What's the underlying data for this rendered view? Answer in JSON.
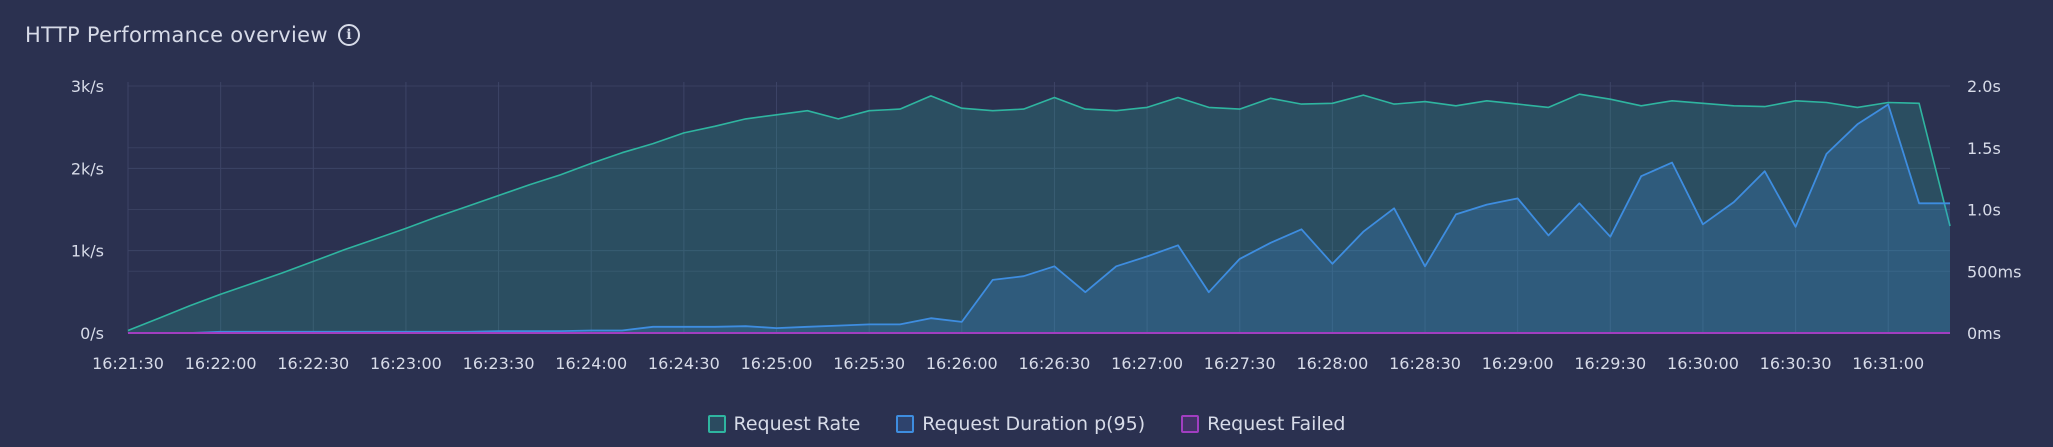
{
  "panel": {
    "title": "HTTP Performance overview",
    "info_icon": "info-icon"
  },
  "chart_data": {
    "type": "line",
    "x": [
      "16:21:30",
      "16:21:40",
      "16:21:50",
      "16:22:00",
      "16:22:10",
      "16:22:20",
      "16:22:30",
      "16:22:40",
      "16:22:50",
      "16:23:00",
      "16:23:10",
      "16:23:20",
      "16:23:30",
      "16:23:40",
      "16:23:50",
      "16:24:00",
      "16:24:10",
      "16:24:20",
      "16:24:30",
      "16:24:40",
      "16:24:50",
      "16:25:00",
      "16:25:10",
      "16:25:20",
      "16:25:30",
      "16:25:40",
      "16:25:50",
      "16:26:00",
      "16:26:10",
      "16:26:20",
      "16:26:30",
      "16:26:40",
      "16:26:50",
      "16:27:00",
      "16:27:10",
      "16:27:20",
      "16:27:30",
      "16:27:40",
      "16:27:50",
      "16:28:00",
      "16:28:10",
      "16:28:20",
      "16:28:30",
      "16:28:40",
      "16:28:50",
      "16:29:00",
      "16:29:10",
      "16:29:20",
      "16:29:30",
      "16:29:40",
      "16:29:50",
      "16:30:00",
      "16:30:10",
      "16:30:20",
      "16:30:30",
      "16:30:40",
      "16:30:50",
      "16:31:00",
      "16:31:10",
      "16:31:20"
    ],
    "x_ticks": [
      "16:21:30",
      "16:22:00",
      "16:22:30",
      "16:23:00",
      "16:23:30",
      "16:24:00",
      "16:24:30",
      "16:25:00",
      "16:25:30",
      "16:26:00",
      "16:26:30",
      "16:27:00",
      "16:27:30",
      "16:28:00",
      "16:28:30",
      "16:29:00",
      "16:29:30",
      "16:30:00",
      "16:30:30",
      "16:31:00"
    ],
    "y_left": {
      "ticks": [
        "0/s",
        "1k/s",
        "2k/s",
        "3k/s"
      ],
      "tick_values": [
        0,
        1000,
        2000,
        3000
      ],
      "range": [
        0,
        3000
      ]
    },
    "y_right": {
      "ticks": [
        "0ms",
        "500ms",
        "1.0s",
        "1.5s",
        "2.0s"
      ],
      "tick_values": [
        0,
        0.5,
        1.0,
        1.5,
        2.0
      ],
      "range": [
        0,
        2.0
      ]
    },
    "grid": true,
    "legend_position": "bottom",
    "series": [
      {
        "name": "Request Rate",
        "axis": "left",
        "color": "#2fb5a0",
        "values": [
          30,
          180,
          330,
          470,
          600,
          730,
          870,
          1010,
          1140,
          1270,
          1410,
          1540,
          1670,
          1800,
          1920,
          2060,
          2190,
          2300,
          2430,
          2510,
          2600,
          2650,
          2700,
          2600,
          2700,
          2720,
          2880,
          2730,
          2700,
          2720,
          2860,
          2720,
          2700,
          2740,
          2860,
          2740,
          2720,
          2850,
          2780,
          2790,
          2890,
          2780,
          2810,
          2760,
          2820,
          2780,
          2740,
          2900,
          2840,
          2760,
          2820,
          2790,
          2760,
          2750,
          2820,
          2800,
          2740,
          2800,
          2790,
          1300
        ]
      },
      {
        "name": "Request Duration p(95)",
        "axis": "right",
        "color": "#3e8de0",
        "values": [
          0.0,
          0.0,
          0.0,
          0.01,
          0.01,
          0.01,
          0.01,
          0.01,
          0.01,
          0.01,
          0.01,
          0.01,
          0.015,
          0.015,
          0.015,
          0.02,
          0.02,
          0.05,
          0.05,
          0.05,
          0.055,
          0.04,
          0.05,
          0.06,
          0.07,
          0.07,
          0.12,
          0.09,
          0.43,
          0.46,
          0.54,
          0.33,
          0.54,
          0.62,
          0.71,
          0.33,
          0.6,
          0.73,
          0.84,
          0.56,
          0.82,
          1.01,
          0.54,
          0.96,
          1.04,
          1.09,
          0.79,
          1.05,
          0.78,
          1.27,
          1.38,
          0.88,
          1.06,
          1.31,
          0.86,
          1.45,
          1.69,
          1.85,
          1.05,
          1.05
        ]
      },
      {
        "name": "Request Failed",
        "axis": "left",
        "color": "#a13ec0",
        "values": [
          0,
          0,
          0,
          0,
          0,
          0,
          0,
          0,
          0,
          0,
          0,
          0,
          0,
          0,
          0,
          0,
          0,
          0,
          0,
          0,
          0,
          0,
          0,
          0,
          0,
          0,
          0,
          0,
          0,
          0,
          0,
          0,
          0,
          0,
          0,
          0,
          0,
          0,
          0,
          0,
          0,
          0,
          0,
          0,
          0,
          0,
          0,
          0,
          0,
          0,
          0,
          0,
          0,
          0,
          0,
          0,
          0,
          0,
          0,
          0
        ]
      }
    ]
  }
}
